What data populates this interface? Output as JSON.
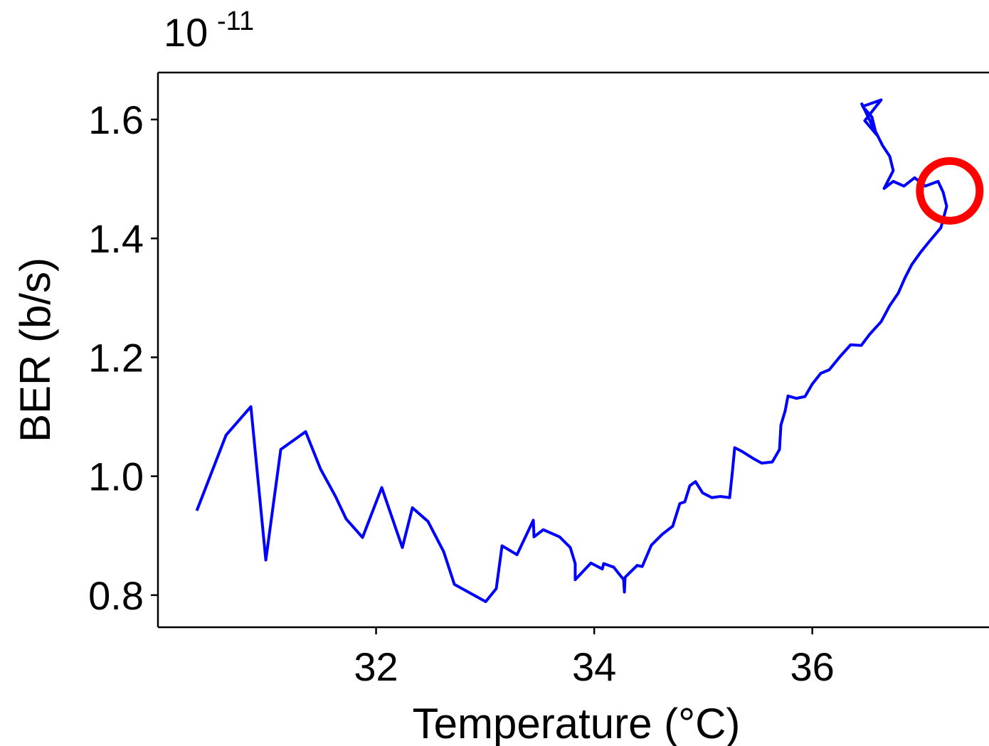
{
  "chart_data": {
    "type": "line",
    "x_label": "Temperature (°C)",
    "y_label": "BER (b/s)",
    "y_scale_base": "10",
    "y_scale_exponent": "-11",
    "color": "#0000ff",
    "x": [
      30.356,
      30.624,
      30.852,
      30.989,
      31.126,
      31.354,
      31.491,
      31.628,
      31.726,
      31.876,
      32.052,
      32.241,
      32.333,
      32.476,
      32.62,
      32.718,
      33.005,
      33.102,
      33.155,
      33.292,
      33.442,
      33.448,
      33.533,
      33.683,
      33.781,
      33.826,
      33.826,
      33.97,
      34.074,
      34.087,
      34.179,
      34.27,
      34.277,
      34.283,
      34.394,
      34.44,
      34.524,
      34.622,
      34.72,
      34.785,
      34.831,
      34.877,
      34.929,
      34.994,
      35.079,
      35.157,
      35.242,
      35.268,
      35.288,
      35.353,
      35.457,
      35.536,
      35.633,
      35.699,
      35.712,
      35.751,
      35.777,
      35.855,
      35.933,
      35.999,
      36.077,
      36.155,
      36.253,
      36.351,
      36.449,
      36.527,
      36.631,
      36.71,
      36.788,
      36.853,
      36.912,
      36.99,
      37.069,
      37.179,
      37.232,
      37.199,
      37.153,
      37.036,
      36.938,
      36.84,
      36.742,
      36.658,
      36.742,
      36.71,
      36.645,
      36.579,
      36.547,
      36.462,
      36.631,
      36.481,
      36.592,
      36.449
    ],
    "values": [
      0.942,
      1.069,
      1.117,
      0.859,
      1.045,
      1.075,
      1.012,
      0.966,
      0.928,
      0.897,
      0.981,
      0.88,
      0.947,
      0.924,
      0.873,
      0.818,
      0.789,
      0.811,
      0.883,
      0.868,
      0.926,
      0.898,
      0.91,
      0.898,
      0.88,
      0.853,
      0.826,
      0.854,
      0.844,
      0.853,
      0.847,
      0.826,
      0.805,
      0.83,
      0.85,
      0.848,
      0.884,
      0.902,
      0.916,
      0.954,
      0.957,
      0.984,
      0.991,
      0.972,
      0.964,
      0.966,
      0.964,
      1.009,
      1.048,
      1.042,
      1.03,
      1.022,
      1.024,
      1.045,
      1.086,
      1.11,
      1.135,
      1.131,
      1.134,
      1.155,
      1.173,
      1.179,
      1.201,
      1.221,
      1.22,
      1.239,
      1.26,
      1.287,
      1.308,
      1.335,
      1.356,
      1.376,
      1.394,
      1.418,
      1.454,
      1.478,
      1.496,
      1.488,
      1.502,
      1.488,
      1.496,
      1.484,
      1.514,
      1.538,
      1.556,
      1.58,
      1.604,
      1.622,
      1.633,
      1.598,
      1.574,
      1.628
    ],
    "highlight": {
      "x": 37.26,
      "y": 1.48,
      "color": "#ff0000"
    },
    "xlim": [
      30.0,
      37.62
    ],
    "ylim": [
      0.746,
      1.679
    ],
    "xticks": [
      32,
      34,
      36
    ],
    "yticks": [
      0.8,
      {
        "value": 1,
        "label": "1.0"
      },
      1.2,
      1.4,
      1.6
    ]
  }
}
